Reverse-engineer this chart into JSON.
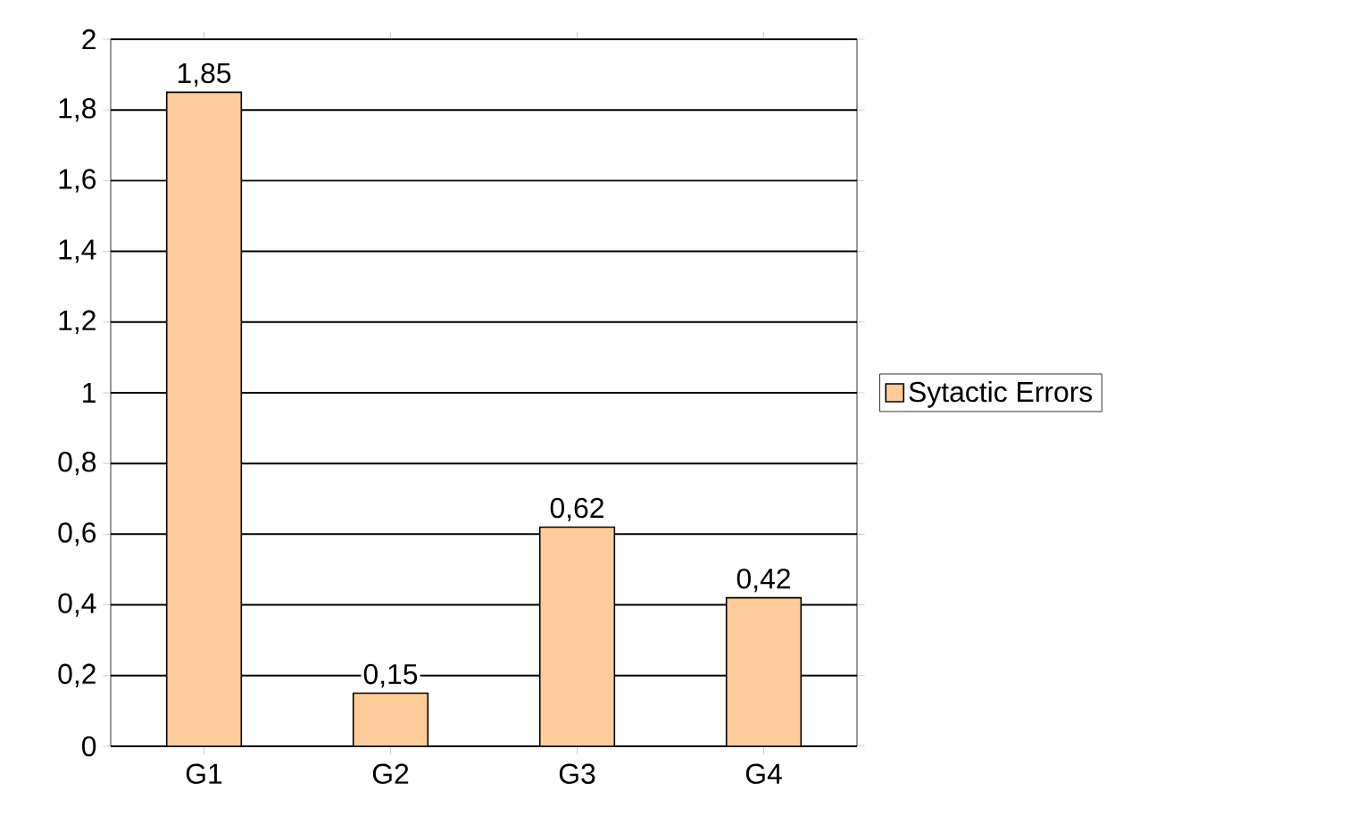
{
  "chart_data": {
    "type": "bar",
    "categories": [
      "G1",
      "G2",
      "G3",
      "G4"
    ],
    "series": [
      {
        "name": "Sytactic Errors",
        "color": "#ffcc99",
        "values": [
          1.85,
          0.15,
          0.62,
          0.42
        ],
        "value_labels": [
          "1,85",
          "0,15",
          "0,62",
          "0,42"
        ]
      }
    ],
    "ylim": [
      0,
      2
    ],
    "yticks": [
      0,
      {
        "value": 0.2,
        "label": "0,2"
      },
      {
        "value": 0.4,
        "label": "0,4"
      },
      {
        "value": 0.6,
        "label": "0,6"
      },
      {
        "value": 0.8,
        "label": "0,8"
      },
      1,
      {
        "value": 1.2,
        "label": "1,2"
      },
      {
        "value": 1.4,
        "label": "1,4"
      },
      {
        "value": 1.6,
        "label": "1,6"
      },
      {
        "value": 1.8,
        "label": "1,8"
      },
      2
    ],
    "grid": "y",
    "legend": "right"
  }
}
